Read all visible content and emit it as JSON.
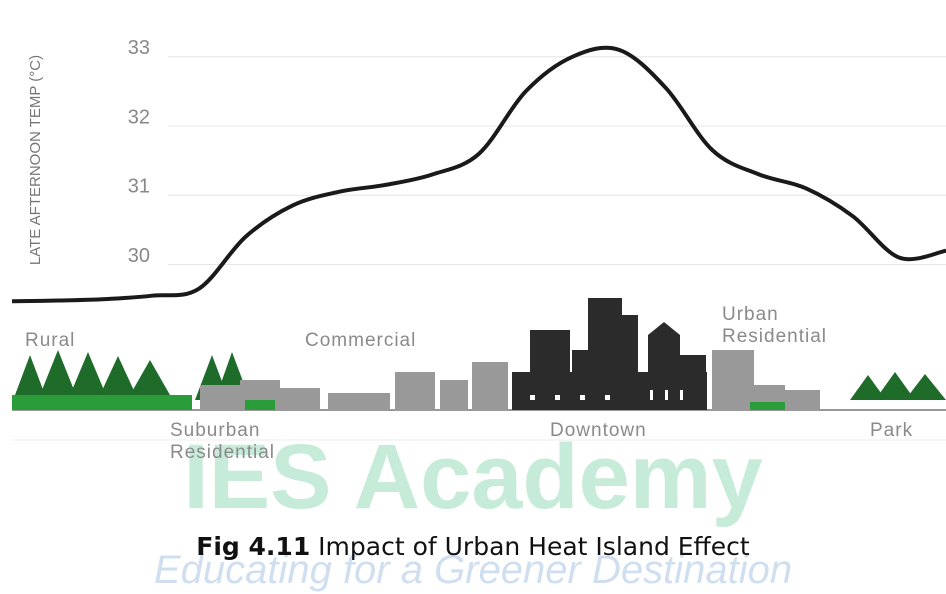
{
  "chart_data": {
    "type": "line",
    "ylabel": "LATE AFTERNOON TEMP (°C)",
    "categories": [
      null,
      "Rural",
      null,
      null,
      null,
      "Suburban Residential",
      null,
      null,
      "Commercial",
      null,
      null,
      null,
      null,
      "Downtown",
      null,
      null,
      null,
      "Urban Residential",
      null,
      "Park",
      null
    ],
    "series": [
      {
        "color": "#1a1a1a",
        "values": [
          29.47,
          29.48,
          29.5,
          29.55,
          29.65,
          30.4,
          30.85,
          31.05,
          31.15,
          31.3,
          31.6,
          32.5,
          33.0,
          33.1,
          32.55,
          31.65,
          31.3,
          31.1,
          30.7,
          30.1,
          30.2
        ]
      }
    ],
    "ylim": [
      29.3,
      33.3
    ],
    "yticks": [
      30,
      31,
      32,
      33
    ],
    "grid": true
  },
  "watermark": {
    "title": "IES Academy",
    "tagline": "Educating for a Greener Destination"
  },
  "caption": {
    "figure_number": "Fig 4.11",
    "text": "Impact of Urban Heat Island Effect"
  }
}
